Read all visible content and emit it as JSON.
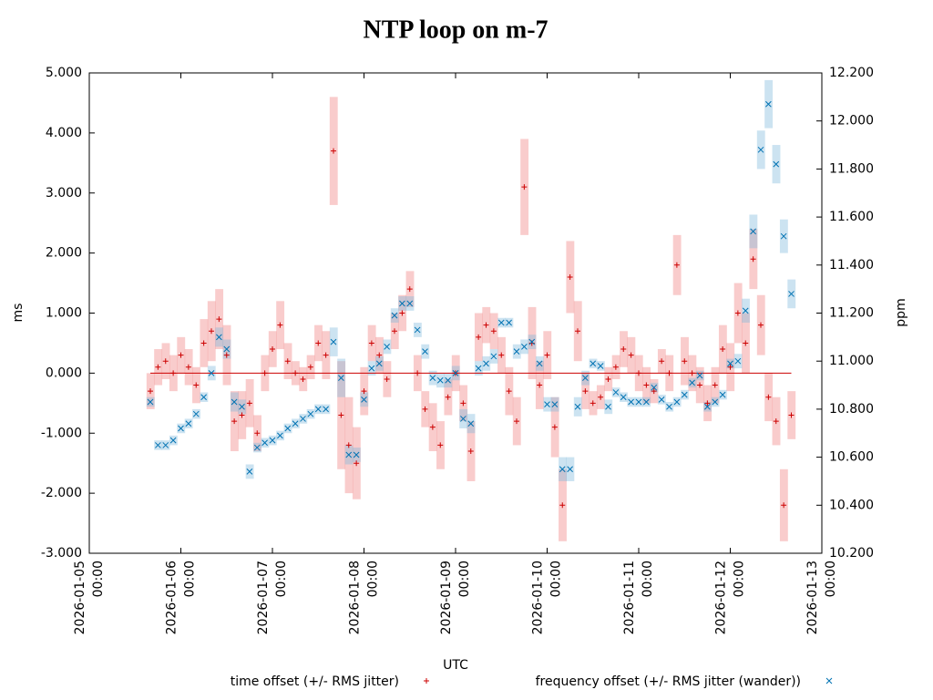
{
  "chart_data": {
    "type": "scatter",
    "title": "NTP loop on m-7",
    "x_label": "UTC",
    "y_label": "ms",
    "y2_label": "ppm",
    "xlim": [
      "2026-01-05 00:00",
      "2026-01-13 00:00"
    ],
    "xticks": [
      "2026-01-05 00:00",
      "2026-01-06 00:00",
      "2026-01-07 00:00",
      "2026-01-08 00:00",
      "2026-01-09 00:00",
      "2026-01-10 00:00",
      "2026-01-11 00:00",
      "2026-01-12 00:00",
      "2026-01-13 00:00"
    ],
    "ylim": [
      -3,
      5
    ],
    "yticks": [
      {
        "value": -3,
        "label": "-3.000"
      },
      {
        "value": -2,
        "label": "-2.000"
      },
      {
        "value": -1,
        "label": "-1.000"
      },
      {
        "value": 0,
        "label": "0.000"
      },
      {
        "value": 1,
        "label": "1.000"
      },
      {
        "value": 2,
        "label": "2.000"
      },
      {
        "value": 3,
        "label": "3.000"
      },
      {
        "value": 4,
        "label": "4.000"
      },
      {
        "value": 5,
        "label": "5.000"
      }
    ],
    "y2lim": [
      10.2,
      12.2
    ],
    "y2ticks": [
      {
        "value": 10.2,
        "label": "10.200"
      },
      {
        "value": 10.4,
        "label": "10.400"
      },
      {
        "value": 10.6,
        "label": "10.600"
      },
      {
        "value": 10.8,
        "label": "10.800"
      },
      {
        "value": 11.0,
        "label": "11.000"
      },
      {
        "value": 11.2,
        "label": "11.200"
      },
      {
        "value": 11.4,
        "label": "11.400"
      },
      {
        "value": 11.6,
        "label": "11.600"
      },
      {
        "value": 11.8,
        "label": "11.800"
      },
      {
        "value": 12.0,
        "label": "12.000"
      },
      {
        "value": 12.2,
        "label": "12.200"
      }
    ],
    "x": [
      "2026-01-05 16:00",
      "2026-01-05 18:00",
      "2026-01-05 20:00",
      "2026-01-05 22:00",
      "2026-01-06 00:00",
      "2026-01-06 02:00",
      "2026-01-06 04:00",
      "2026-01-06 06:00",
      "2026-01-06 08:00",
      "2026-01-06 10:00",
      "2026-01-06 12:00",
      "2026-01-06 14:00",
      "2026-01-06 16:00",
      "2026-01-06 18:00",
      "2026-01-06 20:00",
      "2026-01-06 22:00",
      "2026-01-07 00:00",
      "2026-01-07 02:00",
      "2026-01-07 04:00",
      "2026-01-07 06:00",
      "2026-01-07 08:00",
      "2026-01-07 10:00",
      "2026-01-07 12:00",
      "2026-01-07 14:00",
      "2026-01-07 16:00",
      "2026-01-07 18:00",
      "2026-01-07 20:00",
      "2026-01-07 22:00",
      "2026-01-08 00:00",
      "2026-01-08 02:00",
      "2026-01-08 04:00",
      "2026-01-08 06:00",
      "2026-01-08 08:00",
      "2026-01-08 10:00",
      "2026-01-08 12:00",
      "2026-01-08 14:00",
      "2026-01-08 16:00",
      "2026-01-08 18:00",
      "2026-01-08 20:00",
      "2026-01-08 22:00",
      "2026-01-09 00:00",
      "2026-01-09 02:00",
      "2026-01-09 04:00",
      "2026-01-09 06:00",
      "2026-01-09 08:00",
      "2026-01-09 10:00",
      "2026-01-09 12:00",
      "2026-01-09 14:00",
      "2026-01-09 16:00",
      "2026-01-09 18:00",
      "2026-01-09 20:00",
      "2026-01-09 22:00",
      "2026-01-10 00:00",
      "2026-01-10 02:00",
      "2026-01-10 04:00",
      "2026-01-10 06:00",
      "2026-01-10 08:00",
      "2026-01-10 10:00",
      "2026-01-10 12:00",
      "2026-01-10 14:00",
      "2026-01-10 16:00",
      "2026-01-10 18:00",
      "2026-01-10 20:00",
      "2026-01-10 22:00",
      "2026-01-11 00:00",
      "2026-01-11 02:00",
      "2026-01-11 04:00",
      "2026-01-11 06:00",
      "2026-01-11 08:00",
      "2026-01-11 10:00",
      "2026-01-11 12:00",
      "2026-01-11 14:00",
      "2026-01-11 16:00",
      "2026-01-11 18:00",
      "2026-01-11 20:00",
      "2026-01-11 22:00",
      "2026-01-12 00:00",
      "2026-01-12 02:00",
      "2026-01-12 04:00",
      "2026-01-12 06:00",
      "2026-01-12 08:00",
      "2026-01-12 10:00",
      "2026-01-12 12:00",
      "2026-01-12 14:00",
      "2026-01-12 16:00"
    ],
    "series": [
      {
        "name": "time offset (+/- RMS jitter)",
        "color": "#cc0000",
        "band_color": "#f08080",
        "marker": "plus",
        "values": [
          -0.3,
          0.1,
          0.2,
          0.0,
          0.3,
          0.1,
          -0.2,
          0.5,
          0.7,
          0.9,
          0.3,
          -0.8,
          -0.7,
          -0.5,
          -1.0,
          0.0,
          0.4,
          0.8,
          0.2,
          0.0,
          -0.1,
          0.1,
          0.5,
          0.3,
          3.7,
          -0.7,
          -1.2,
          -1.5,
          -0.3,
          0.5,
          0.3,
          -0.1,
          0.7,
          1.0,
          1.4,
          0.0,
          -0.6,
          -0.9,
          -1.2,
          -0.4,
          0.0,
          -0.5,
          -1.3,
          0.6,
          0.8,
          0.7,
          0.3,
          -0.3,
          -0.8,
          3.1,
          0.5,
          -0.2,
          0.3,
          -0.9,
          -2.2,
          1.6,
          0.7,
          -0.3,
          -0.5,
          -0.4,
          -0.1,
          0.1,
          0.4,
          0.3,
          0.0,
          -0.2,
          -0.3,
          0.2,
          0.0,
          1.8,
          0.2,
          0.0,
          -0.2,
          -0.5,
          -0.2,
          0.4,
          0.1,
          1.0,
          0.5,
          1.9,
          0.8,
          -0.4,
          -0.8,
          -2.2,
          -0.7
        ],
        "errors": [
          0.3,
          0.3,
          0.3,
          0.3,
          0.3,
          0.3,
          0.3,
          0.4,
          0.5,
          0.5,
          0.5,
          0.5,
          0.4,
          0.4,
          0.3,
          0.3,
          0.3,
          0.4,
          0.3,
          0.2,
          0.2,
          0.2,
          0.3,
          0.4,
          0.9,
          0.9,
          0.8,
          0.6,
          0.4,
          0.3,
          0.3,
          0.3,
          0.3,
          0.3,
          0.3,
          0.3,
          0.3,
          0.4,
          0.4,
          0.3,
          0.3,
          0.3,
          0.5,
          0.4,
          0.3,
          0.3,
          0.3,
          0.4,
          0.4,
          0.8,
          0.6,
          0.4,
          0.4,
          0.5,
          0.6,
          0.6,
          0.5,
          0.3,
          0.2,
          0.2,
          0.2,
          0.2,
          0.3,
          0.3,
          0.3,
          0.3,
          0.2,
          0.2,
          0.3,
          0.5,
          0.4,
          0.3,
          0.3,
          0.3,
          0.3,
          0.4,
          0.4,
          0.5,
          0.5,
          0.5,
          0.5,
          0.4,
          0.4,
          0.6,
          0.4
        ]
      },
      {
        "name": "frequency offset (+/- RMS jitter (wander))",
        "color": "#0072b2",
        "band_color": "#80b8dc",
        "marker": "cross",
        "axis": "y2",
        "values": [
          10.83,
          10.65,
          10.65,
          10.67,
          10.72,
          10.74,
          10.78,
          10.85,
          10.95,
          11.1,
          11.05,
          10.83,
          10.81,
          10.54,
          10.64,
          10.66,
          10.67,
          10.69,
          10.72,
          10.74,
          10.76,
          10.78,
          10.8,
          10.8,
          11.08,
          10.93,
          10.61,
          10.61,
          10.84,
          10.97,
          10.99,
          11.06,
          11.19,
          11.24,
          11.24,
          11.13,
          11.04,
          10.93,
          10.92,
          10.92,
          10.95,
          10.76,
          10.74,
          10.97,
          10.99,
          11.02,
          11.16,
          11.16,
          11.04,
          11.06,
          11.08,
          10.99,
          10.82,
          10.82,
          10.55,
          10.55,
          10.81,
          10.93,
          10.99,
          10.98,
          10.81,
          10.87,
          10.85,
          10.83,
          10.83,
          10.83,
          10.89,
          10.84,
          10.81,
          10.83,
          10.86,
          10.91,
          10.94,
          10.81,
          10.83,
          10.86,
          10.99,
          11.0,
          11.21,
          11.54,
          11.88,
          12.07,
          11.82,
          11.52,
          11.28
        ],
        "errors": [
          0.02,
          0.02,
          0.02,
          0.02,
          0.02,
          0.02,
          0.02,
          0.02,
          0.03,
          0.04,
          0.04,
          0.04,
          0.03,
          0.03,
          0.02,
          0.02,
          0.02,
          0.02,
          0.02,
          0.02,
          0.02,
          0.02,
          0.02,
          0.02,
          0.06,
          0.08,
          0.04,
          0.03,
          0.03,
          0.03,
          0.03,
          0.03,
          0.03,
          0.03,
          0.03,
          0.03,
          0.03,
          0.03,
          0.03,
          0.03,
          0.03,
          0.04,
          0.04,
          0.03,
          0.03,
          0.03,
          0.02,
          0.02,
          0.03,
          0.03,
          0.03,
          0.03,
          0.03,
          0.03,
          0.05,
          0.05,
          0.04,
          0.03,
          0.02,
          0.02,
          0.03,
          0.02,
          0.02,
          0.02,
          0.02,
          0.02,
          0.02,
          0.02,
          0.02,
          0.02,
          0.02,
          0.02,
          0.02,
          0.02,
          0.02,
          0.02,
          0.02,
          0.03,
          0.05,
          0.07,
          0.08,
          0.1,
          0.08,
          0.07,
          0.06
        ]
      }
    ]
  }
}
